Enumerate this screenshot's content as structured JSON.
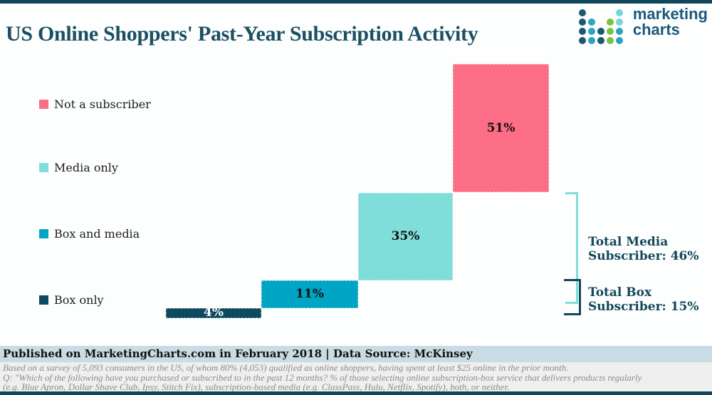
{
  "header": {
    "title": "US Online Shoppers' Past-Year Subscription Activity",
    "logo": {
      "line1": "marketing",
      "line2": "charts"
    }
  },
  "logo_dots": {
    "colors": {
      "n": "#1d5871",
      "t": "#2ba4bd",
      "g": "#7cc242",
      "l": "#79d4dd"
    },
    "grid": [
      [
        "n",
        null,
        null,
        null,
        "l"
      ],
      [
        "n",
        "t",
        null,
        "g",
        "l"
      ],
      [
        "n",
        "t",
        "n",
        "g",
        "t"
      ],
      [
        "n",
        "t",
        "n",
        "g",
        "t"
      ]
    ]
  },
  "legend": {
    "items": [
      {
        "label": "Not a subscriber",
        "color": "#fc6e86"
      },
      {
        "label": "Media only",
        "color": "#7fdeda"
      },
      {
        "label": "Box and media",
        "color": "#00a4c4"
      },
      {
        "label": "Box only",
        "color": "#0d4a5f"
      }
    ]
  },
  "chart_data": {
    "type": "bar",
    "subtype": "stepped-stacked-waterfall",
    "title": "US Online Shoppers' Past-Year Subscription Activity",
    "categories": [
      "Box only",
      "Box and media",
      "Media only",
      "Not a subscriber"
    ],
    "values": [
      4,
      11,
      35,
      51
    ],
    "labels": [
      "4%",
      "11%",
      "35%",
      "51%"
    ],
    "colors": [
      "#0d4a5f",
      "#00a4c4",
      "#7fdeda",
      "#fc6e86"
    ],
    "label_colors": [
      "#ffffff",
      "#101010",
      "#101010",
      "#101010"
    ],
    "unit": "%",
    "axis": "none",
    "grid": false,
    "legend_position": "left",
    "annotations": [
      {
        "name": "total-media",
        "line1": "Total Media",
        "line2": "Subscriber: 46%",
        "value": 46,
        "covers": [
          "Box and media",
          "Media only"
        ],
        "bracket_color": "#7fdeda"
      },
      {
        "name": "total-box",
        "line1": "Total Box",
        "line2": "Subscriber: 15%",
        "value": 15,
        "covers": [
          "Box only",
          "Box and media"
        ],
        "bracket_color": "#12475a"
      }
    ]
  },
  "footer": {
    "published": "Published on MarketingCharts.com in February 2018 | Data Source: McKinsey",
    "notes": [
      "Based on a survey of 5,093 consumers in the US, of whom 80% (4,053) qualified as online shoppers, having spent at least $25 online in the prior month.",
      "Q: \"Which of the following have you purchased or subscribed to in the past 12 months? % of those selecting online subscription-box service that delivers products regularly",
      "(e.g. Blue Apron, Dollar Shave Club, Ipsy, Stitch Fix), subscription-based media (e.g. ClassPass, Hulu, Netflix, Spotify), both, or neither."
    ]
  }
}
